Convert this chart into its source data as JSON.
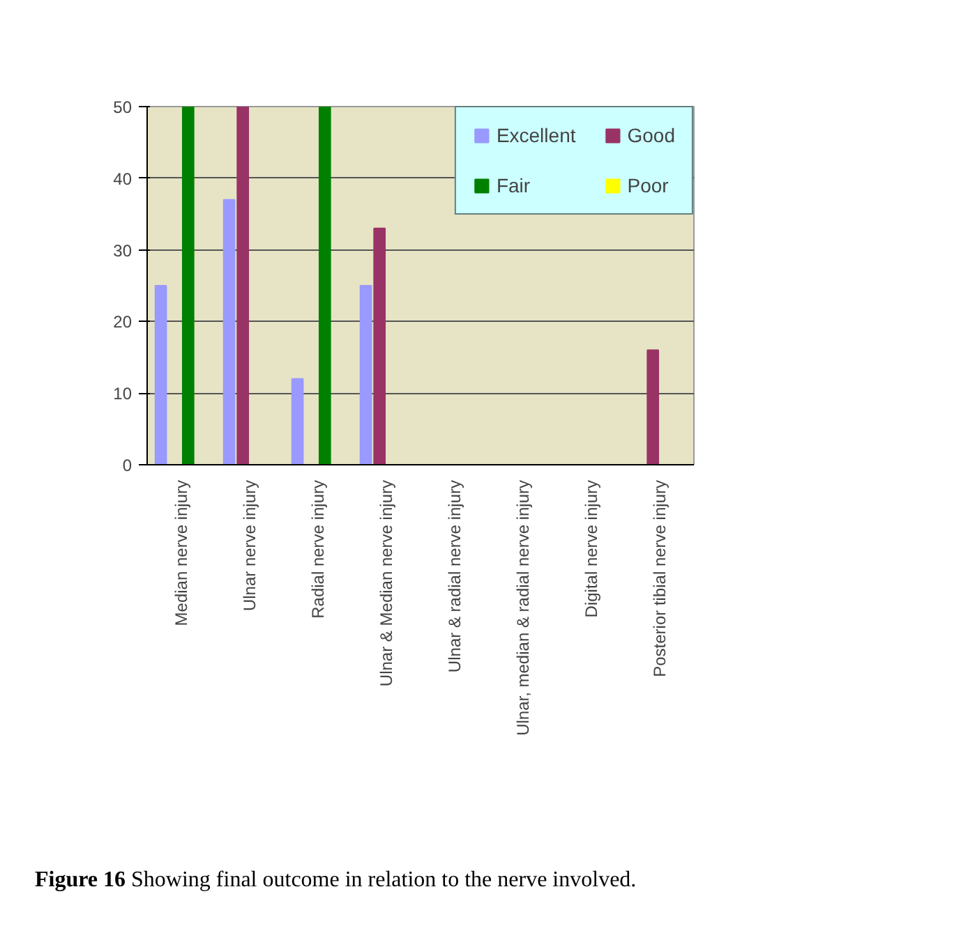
{
  "chart_data": {
    "type": "bar",
    "categories": [
      "Median nerve injury",
      "Ulnar nerve injury",
      "Radial nerve injury",
      "Ulnar & Median nerve injury",
      "Ulnar & radial nerve injury",
      "Ulnar, median & radial nerve injury",
      "Digital nerve injury",
      "Posterior tibial nerve injury"
    ],
    "series": [
      {
        "name": "Excellent",
        "color": "#9999ff",
        "values": [
          25,
          37,
          12,
          25,
          0,
          0,
          0,
          0
        ]
      },
      {
        "name": "Good",
        "color": "#993366",
        "values": [
          0,
          50,
          0,
          33,
          0,
          0,
          0,
          16
        ]
      },
      {
        "name": "Fair",
        "color": "#008000",
        "values": [
          50,
          0,
          50,
          0,
          0,
          0,
          0,
          0
        ]
      },
      {
        "name": "Poor",
        "color": "#ffff00",
        "values": [
          0,
          0,
          0,
          0,
          0,
          0,
          0,
          0
        ]
      }
    ],
    "ylim": [
      0,
      50
    ],
    "yticks": [
      0,
      10,
      20,
      30,
      40,
      50
    ],
    "grid": "y",
    "legend": "top right",
    "annotations": [
      "Figure 16 Showing final outcome in relation to the nerve involved."
    ]
  }
}
